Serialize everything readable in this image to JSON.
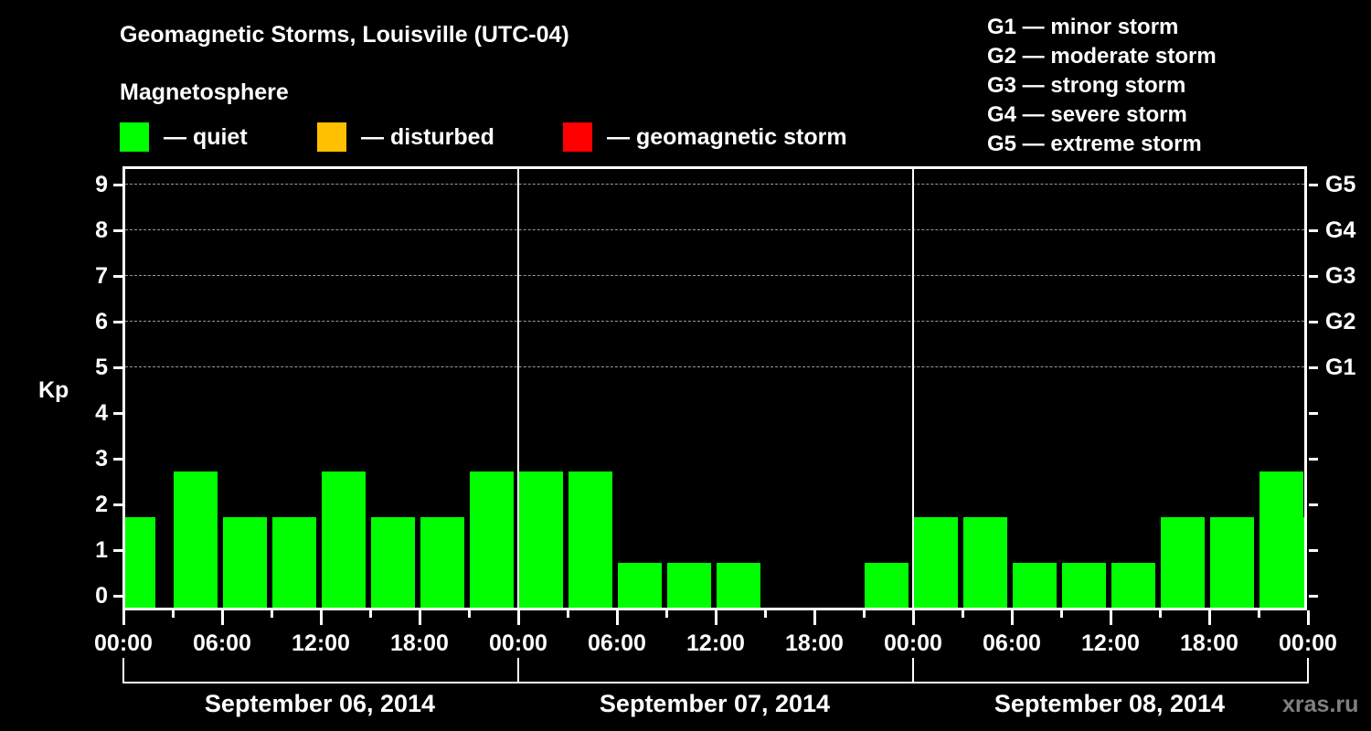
{
  "header": {
    "title": "Geomagnetic Storms, Louisville (UTC-04)",
    "subtitle": "Magnetosphere",
    "legend": [
      {
        "label": "— quiet",
        "color": "#00ff00"
      },
      {
        "label": "— disturbed",
        "color": "#ffc000"
      },
      {
        "label": "— geomagnetic storm",
        "color": "#ff0000"
      }
    ],
    "storm_scale": [
      "G1 — minor storm",
      "G2 — moderate storm",
      "G3 — strong storm",
      "G4 — severe storm",
      "G5 — extreme storm"
    ]
  },
  "axes": {
    "ylabel": "Kp",
    "yticks": [
      "0",
      "1",
      "2",
      "3",
      "4",
      "5",
      "6",
      "7",
      "8",
      "9"
    ],
    "gticks": [
      "G1",
      "G2",
      "G3",
      "G4",
      "G5"
    ],
    "xticks": [
      "00:00",
      "06:00",
      "12:00",
      "18:00",
      "00:00",
      "06:00",
      "12:00",
      "18:00",
      "00:00",
      "06:00",
      "12:00",
      "18:00",
      "00:00"
    ],
    "dates": [
      "September 06, 2014",
      "September 07, 2014",
      "September 08, 2014"
    ]
  },
  "credit": "xras.ru",
  "chart_data": {
    "type": "bar",
    "title": "Geomagnetic Storms, Louisville (UTC-04)",
    "subtitle": "Magnetosphere",
    "xlabel": "",
    "ylabel": "Kp",
    "ylim": [
      0,
      9
    ],
    "grid": "horizontal dashed at Kp 5-9",
    "legend_position": "top",
    "categories": [
      "09-06 00:00",
      "09-06 03:00",
      "09-06 06:00",
      "09-06 09:00",
      "09-06 12:00",
      "09-06 15:00",
      "09-06 18:00",
      "09-06 21:00",
      "09-07 00:00",
      "09-07 03:00",
      "09-07 06:00",
      "09-07 09:00",
      "09-07 12:00",
      "09-07 15:00",
      "09-07 18:00",
      "09-07 21:00",
      "09-08 00:00",
      "09-08 03:00",
      "09-08 06:00",
      "09-08 09:00",
      "09-08 12:00",
      "09-08 15:00",
      "09-08 18:00",
      "09-08 21:00",
      "09-08 23:00"
    ],
    "values": [
      2,
      3,
      2,
      2,
      3,
      2,
      2,
      3,
      3,
      3,
      1,
      1,
      1,
      0,
      0,
      1,
      2,
      2,
      1,
      1,
      1,
      2,
      2,
      3,
      2
    ],
    "bar_status": "quiet",
    "right_axis": {
      "G1": 5,
      "G2": 6,
      "G3": 7,
      "G4": 8,
      "G5": 9
    }
  }
}
